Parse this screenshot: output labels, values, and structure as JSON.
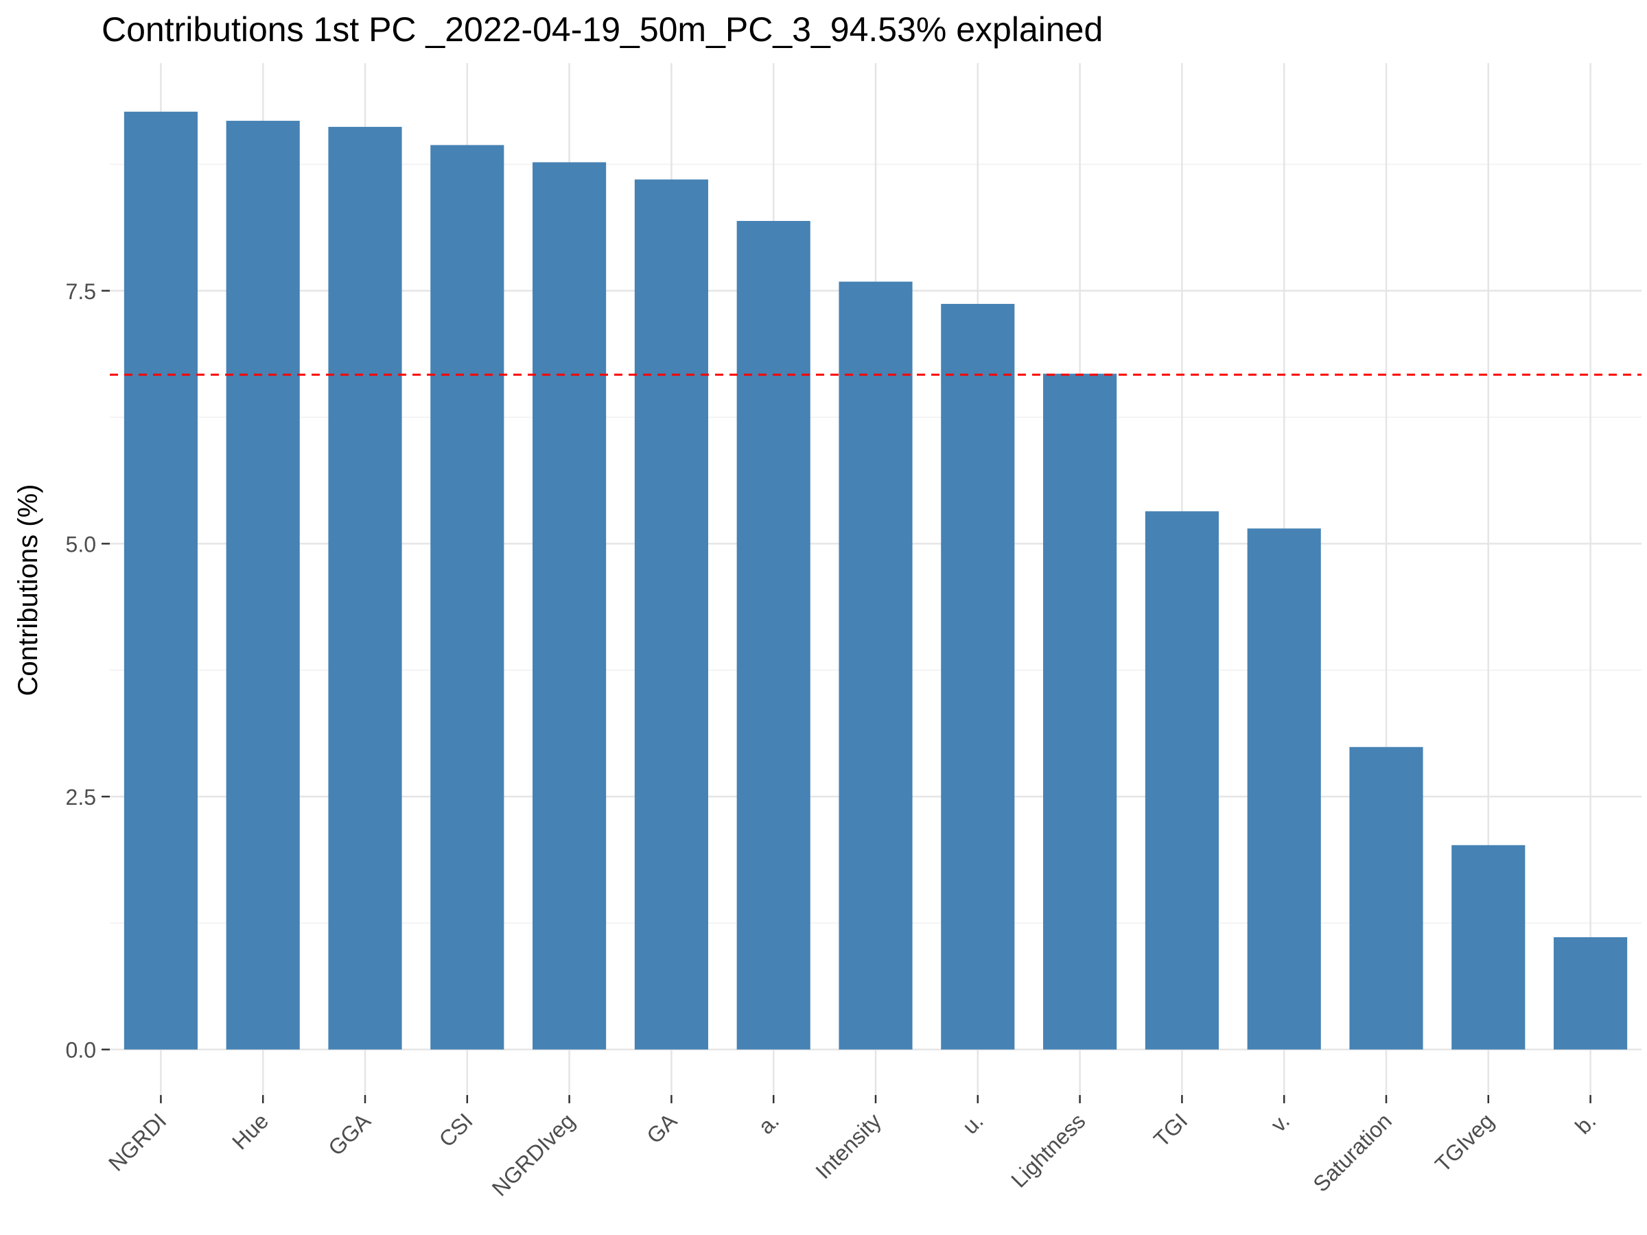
{
  "chart_data": {
    "type": "bar",
    "title": "Contributions 1st PC _2022-04-19_50m_PC_3_94.53% explained",
    "xlabel": "",
    "ylabel": "Contributions (%)",
    "categories": [
      "NGRDI",
      "Hue",
      "GGA",
      "CSI",
      "NGRDIveg",
      "GA",
      "a.",
      "Intensity",
      "u.",
      "Lightness",
      "TGI",
      "v.",
      "Saturation",
      "TGIveg",
      "b."
    ],
    "values": [
      9.27,
      9.18,
      9.12,
      8.94,
      8.77,
      8.6,
      8.19,
      7.59,
      7.37,
      6.68,
      5.32,
      5.15,
      2.99,
      2.02,
      1.11
    ],
    "ylim": [
      -0.45,
      9.75
    ],
    "yticks": [
      0.0,
      2.5,
      5.0,
      7.5
    ],
    "ytick_labels": [
      "0.0",
      "2.5",
      "5.0",
      "7.5"
    ],
    "reference_line": {
      "value": 6.67,
      "color": "#ff0000",
      "style": "dashed"
    },
    "bar_color": "#4682b4",
    "grid": true,
    "legend": "none"
  }
}
